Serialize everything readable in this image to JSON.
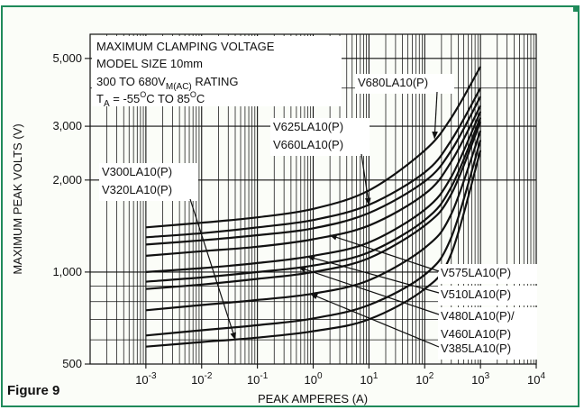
{
  "figure_label": "Figure 9",
  "colors": {
    "frame": "#1f8a5a",
    "ink": "#111111",
    "background": "#fbfdf8"
  },
  "chart_data": {
    "type": "line",
    "title": "",
    "xlabel": "PEAK AMPERES (A)",
    "ylabel": "MAXIMUM PEAK VOLTS (V)",
    "xscale": "log",
    "yscale": "log",
    "xlim": [
      0.0001,
      10000
    ],
    "ylim": [
      500,
      6000
    ],
    "grid": true,
    "x_ticks": [
      {
        "value": 0.001,
        "base": "10",
        "exp": "-3"
      },
      {
        "value": 0.01,
        "base": "10",
        "exp": "-2"
      },
      {
        "value": 0.1,
        "base": "10",
        "exp": "-1"
      },
      {
        "value": 1,
        "base": "10",
        "exp": "0"
      },
      {
        "value": 10,
        "base": "10",
        "exp": "1"
      },
      {
        "value": 100,
        "base": "10",
        "exp": "2"
      },
      {
        "value": 1000,
        "base": "10",
        "exp": "3"
      },
      {
        "value": 10000,
        "base": "10",
        "exp": "4"
      }
    ],
    "y_ticks": [
      {
        "value": 500,
        "label": "500"
      },
      {
        "value": 1000,
        "label": "1,000"
      },
      {
        "value": 2000,
        "label": "2,000"
      },
      {
        "value": 3000,
        "label": "3,000"
      },
      {
        "value": 5000,
        "label": "5,000"
      }
    ],
    "info_box": {
      "line1": "MAXIMUM CLAMPING VOLTAGE",
      "line2": "MODEL SIZE 10mm",
      "line3_pre": "300 TO 680V",
      "line3_sub": "M(AC)",
      "line3_post": " RATING",
      "line4_a": "T",
      "line4_a_sub": "A",
      "line4_b": " = -55",
      "line4_sup1": "O",
      "line4_c": "C TO 85",
      "line4_sup2": "O",
      "line4_d": "C"
    },
    "series": [
      {
        "name": "V300LA10(P)",
        "x": [
          0.001,
          0.01,
          0.1,
          1,
          10,
          100,
          300,
          1000
        ],
        "y": [
          570,
          590,
          610,
          640,
          700,
          880,
          1150,
          2500
        ]
      },
      {
        "name": "V320LA10(P)",
        "x": [
          0.001,
          0.01,
          0.1,
          1,
          10,
          100,
          300,
          1000
        ],
        "y": [
          620,
          645,
          670,
          705,
          780,
          980,
          1300,
          2700
        ]
      },
      {
        "name": "V385LA10(P)",
        "x": [
          0.001,
          0.01,
          0.1,
          1,
          10,
          100,
          300,
          1000
        ],
        "y": [
          750,
          780,
          810,
          850,
          940,
          1200,
          1550,
          2900
        ]
      },
      {
        "name": "V460LA10(P)",
        "x": [
          0.001,
          0.01,
          0.1,
          1,
          10,
          100,
          300,
          1000
        ],
        "y": [
          880,
          910,
          950,
          1000,
          1110,
          1420,
          1800,
          3100
        ]
      },
      {
        "name": "V480LA10(P)",
        "x": [
          0.001,
          0.01,
          0.1,
          1,
          10,
          100,
          300,
          1000
        ],
        "y": [
          930,
          960,
          1000,
          1050,
          1160,
          1480,
          1900,
          3200
        ]
      },
      {
        "name": "V510LA10(P)",
        "x": [
          0.001,
          0.01,
          0.1,
          1,
          10,
          100,
          300,
          1000
        ],
        "y": [
          1000,
          1030,
          1070,
          1130,
          1250,
          1600,
          2050,
          3350
        ]
      },
      {
        "name": "V575LA10(P)",
        "x": [
          0.001,
          0.01,
          0.1,
          1,
          10,
          100,
          300,
          1000
        ],
        "y": [
          1130,
          1170,
          1210,
          1280,
          1420,
          1800,
          2300,
          3500
        ]
      },
      {
        "name": "V625LA10(P)",
        "x": [
          0.001,
          0.01,
          0.1,
          1,
          10,
          100,
          300,
          1000
        ],
        "y": [
          1230,
          1270,
          1320,
          1390,
          1560,
          1980,
          2500,
          3750
        ]
      },
      {
        "name": "V660LA10(P)",
        "x": [
          0.001,
          0.01,
          0.1,
          1,
          10,
          100,
          300,
          1000
        ],
        "y": [
          1300,
          1340,
          1400,
          1480,
          1660,
          2120,
          2700,
          4000
        ]
      },
      {
        "name": "V680LA10(P)",
        "x": [
          0.001,
          0.01,
          0.1,
          1,
          10,
          100,
          300,
          1000
        ],
        "y": [
          1400,
          1450,
          1510,
          1610,
          1850,
          2500,
          3200,
          4700
        ]
      }
    ],
    "annotations": [
      {
        "id": "a680",
        "lines": [
          "V680LA10(P)"
        ],
        "series": [
          "V680LA10(P)"
        ]
      },
      {
        "id": "a625",
        "lines": [
          "V625LA10(P)",
          "V660LA10(P)"
        ],
        "series": [
          "V660LA10(P)"
        ]
      },
      {
        "id": "a300",
        "lines": [
          "V300LA10(P)",
          "V320LA10(P)"
        ],
        "series": [
          "V300LA10(P)"
        ]
      },
      {
        "id": "a575",
        "lines": [
          "V575LA10(P)"
        ],
        "series": [
          "V575LA10(P)"
        ]
      },
      {
        "id": "a510",
        "lines": [
          "V510LA10(P)"
        ],
        "series": [
          "V510LA10(P)"
        ]
      },
      {
        "id": "a480",
        "lines": [
          "V480LA10(P)/",
          "V460LA10(P)"
        ],
        "series": [
          "V480LA10(P)"
        ]
      },
      {
        "id": "a385",
        "lines": [
          "V385LA10(P)"
        ],
        "series": [
          "V385LA10(P)"
        ]
      }
    ]
  }
}
